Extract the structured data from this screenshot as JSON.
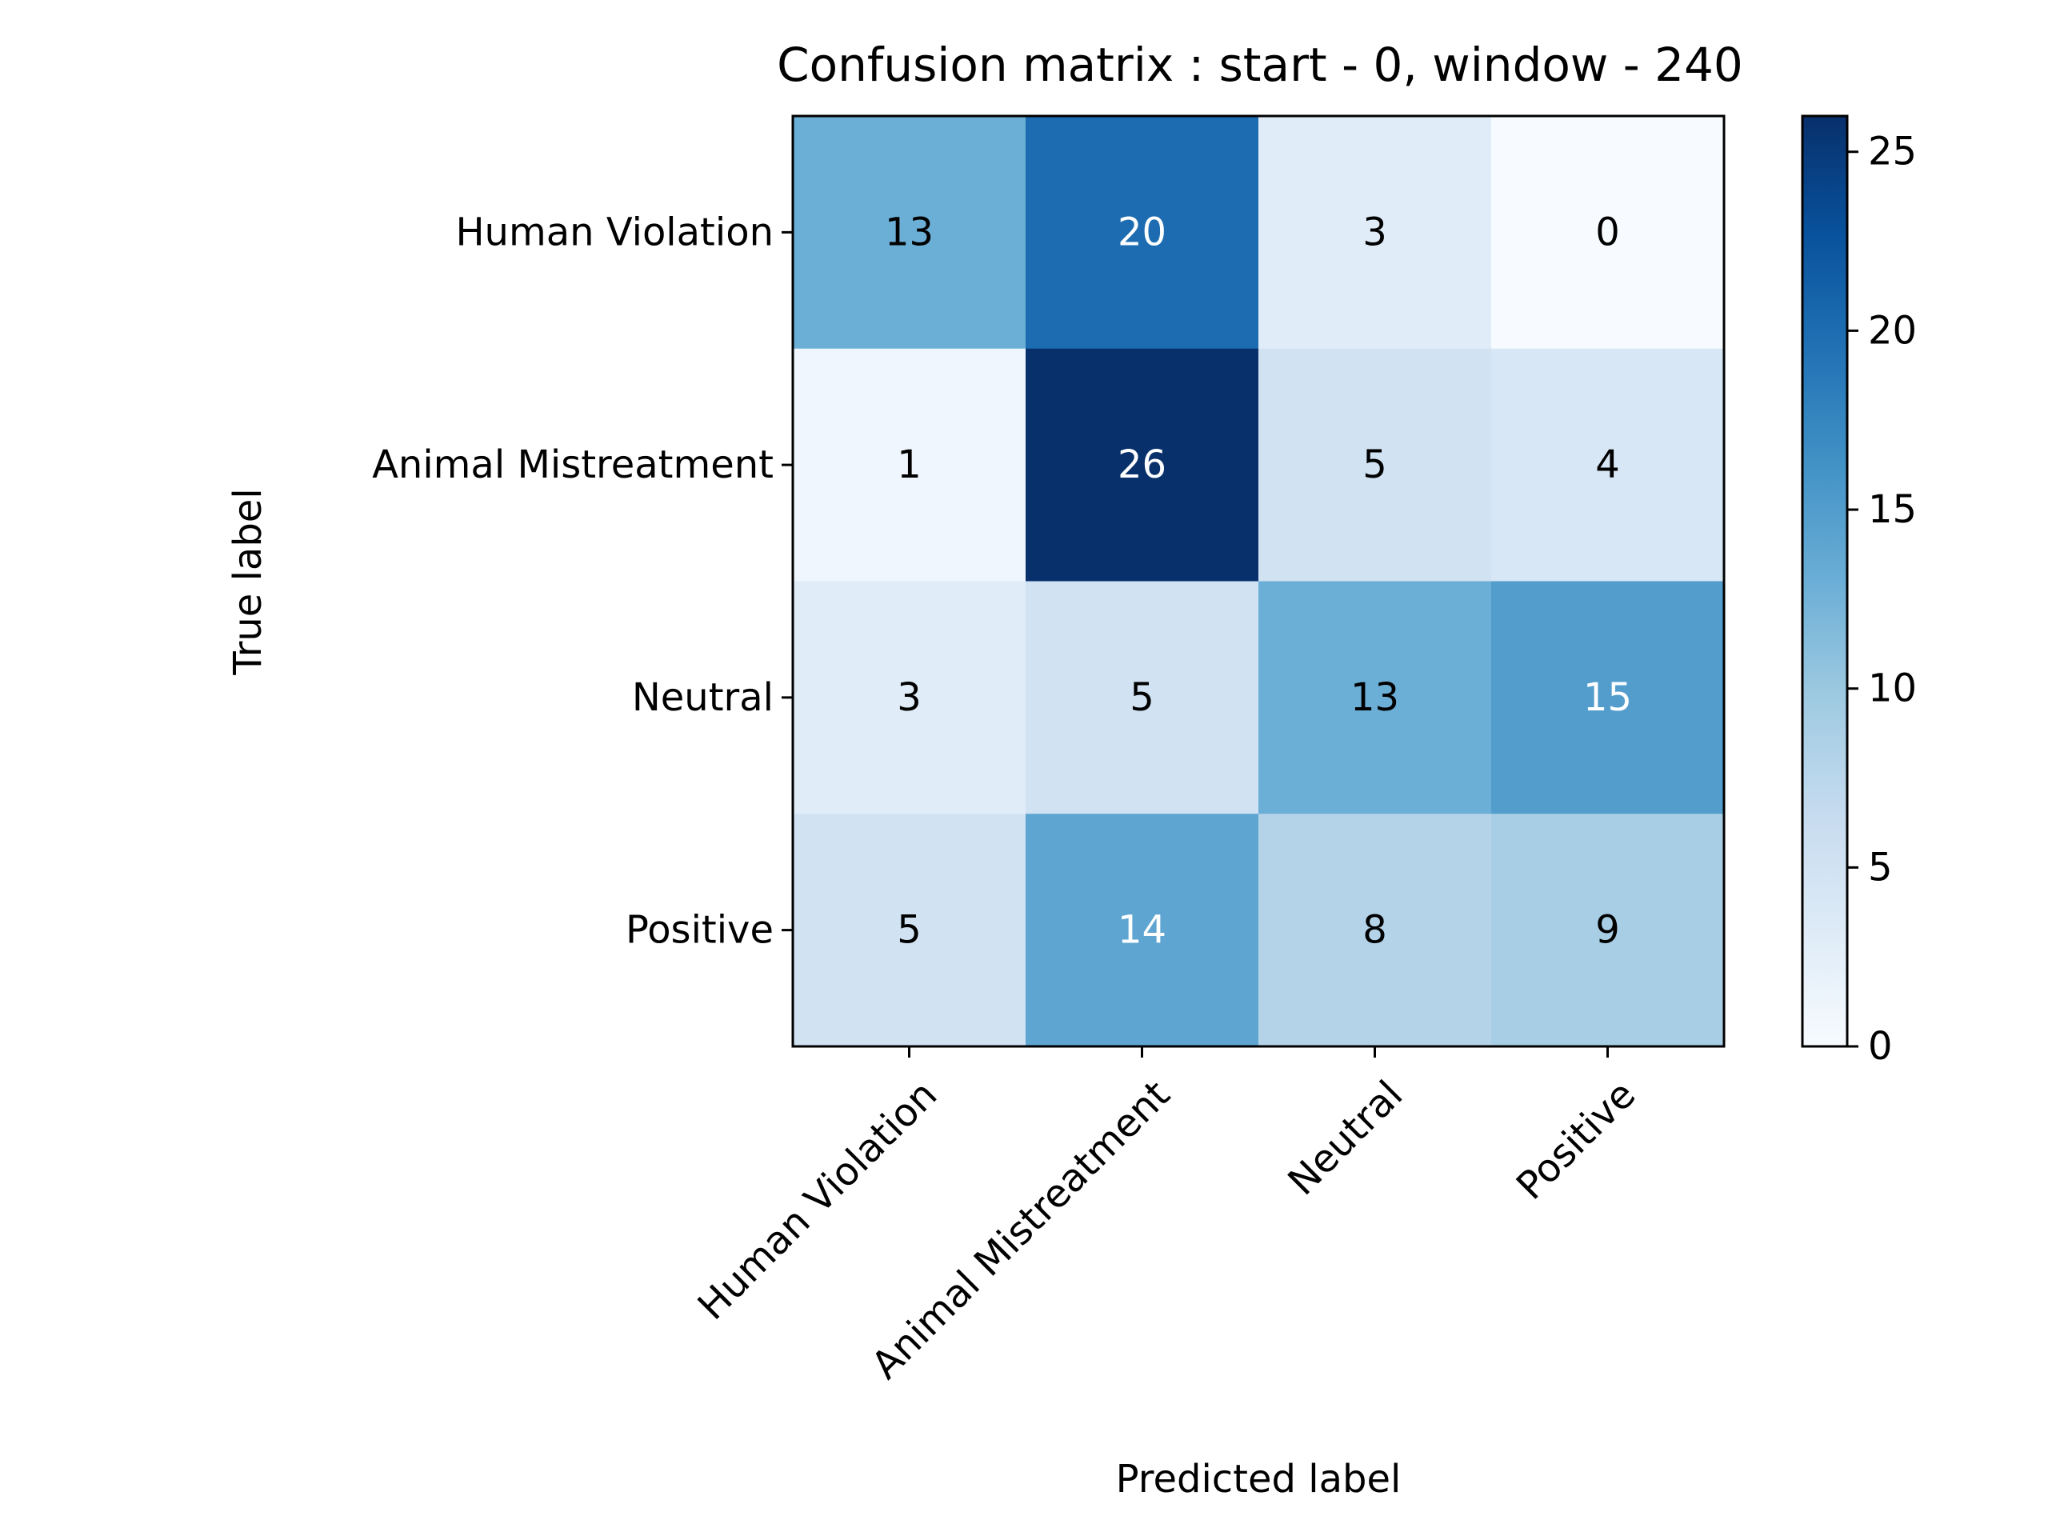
{
  "chart_data": {
    "type": "heatmap",
    "title": "Confusion matrix : start - 0, window - 240",
    "xlabel": "Predicted label",
    "ylabel": "True label",
    "row_labels": [
      "Human Violation",
      "Animal Mistreatment",
      "Neutral",
      "Positive"
    ],
    "col_labels": [
      "Human Violation",
      "Animal Mistreatment",
      "Neutral",
      "Positive"
    ],
    "values": [
      [
        13,
        20,
        3,
        0
      ],
      [
        1,
        26,
        5,
        4
      ],
      [
        3,
        5,
        13,
        15
      ],
      [
        5,
        14,
        8,
        9
      ]
    ],
    "colormap": "Blues",
    "colorbar": {
      "min": 0,
      "max": 26,
      "ticks": [
        "0",
        "5",
        "10",
        "15",
        "20",
        "25"
      ]
    },
    "text_colors": {
      "dark_cell": "#ffffff",
      "light_cell": "#000000"
    }
  }
}
